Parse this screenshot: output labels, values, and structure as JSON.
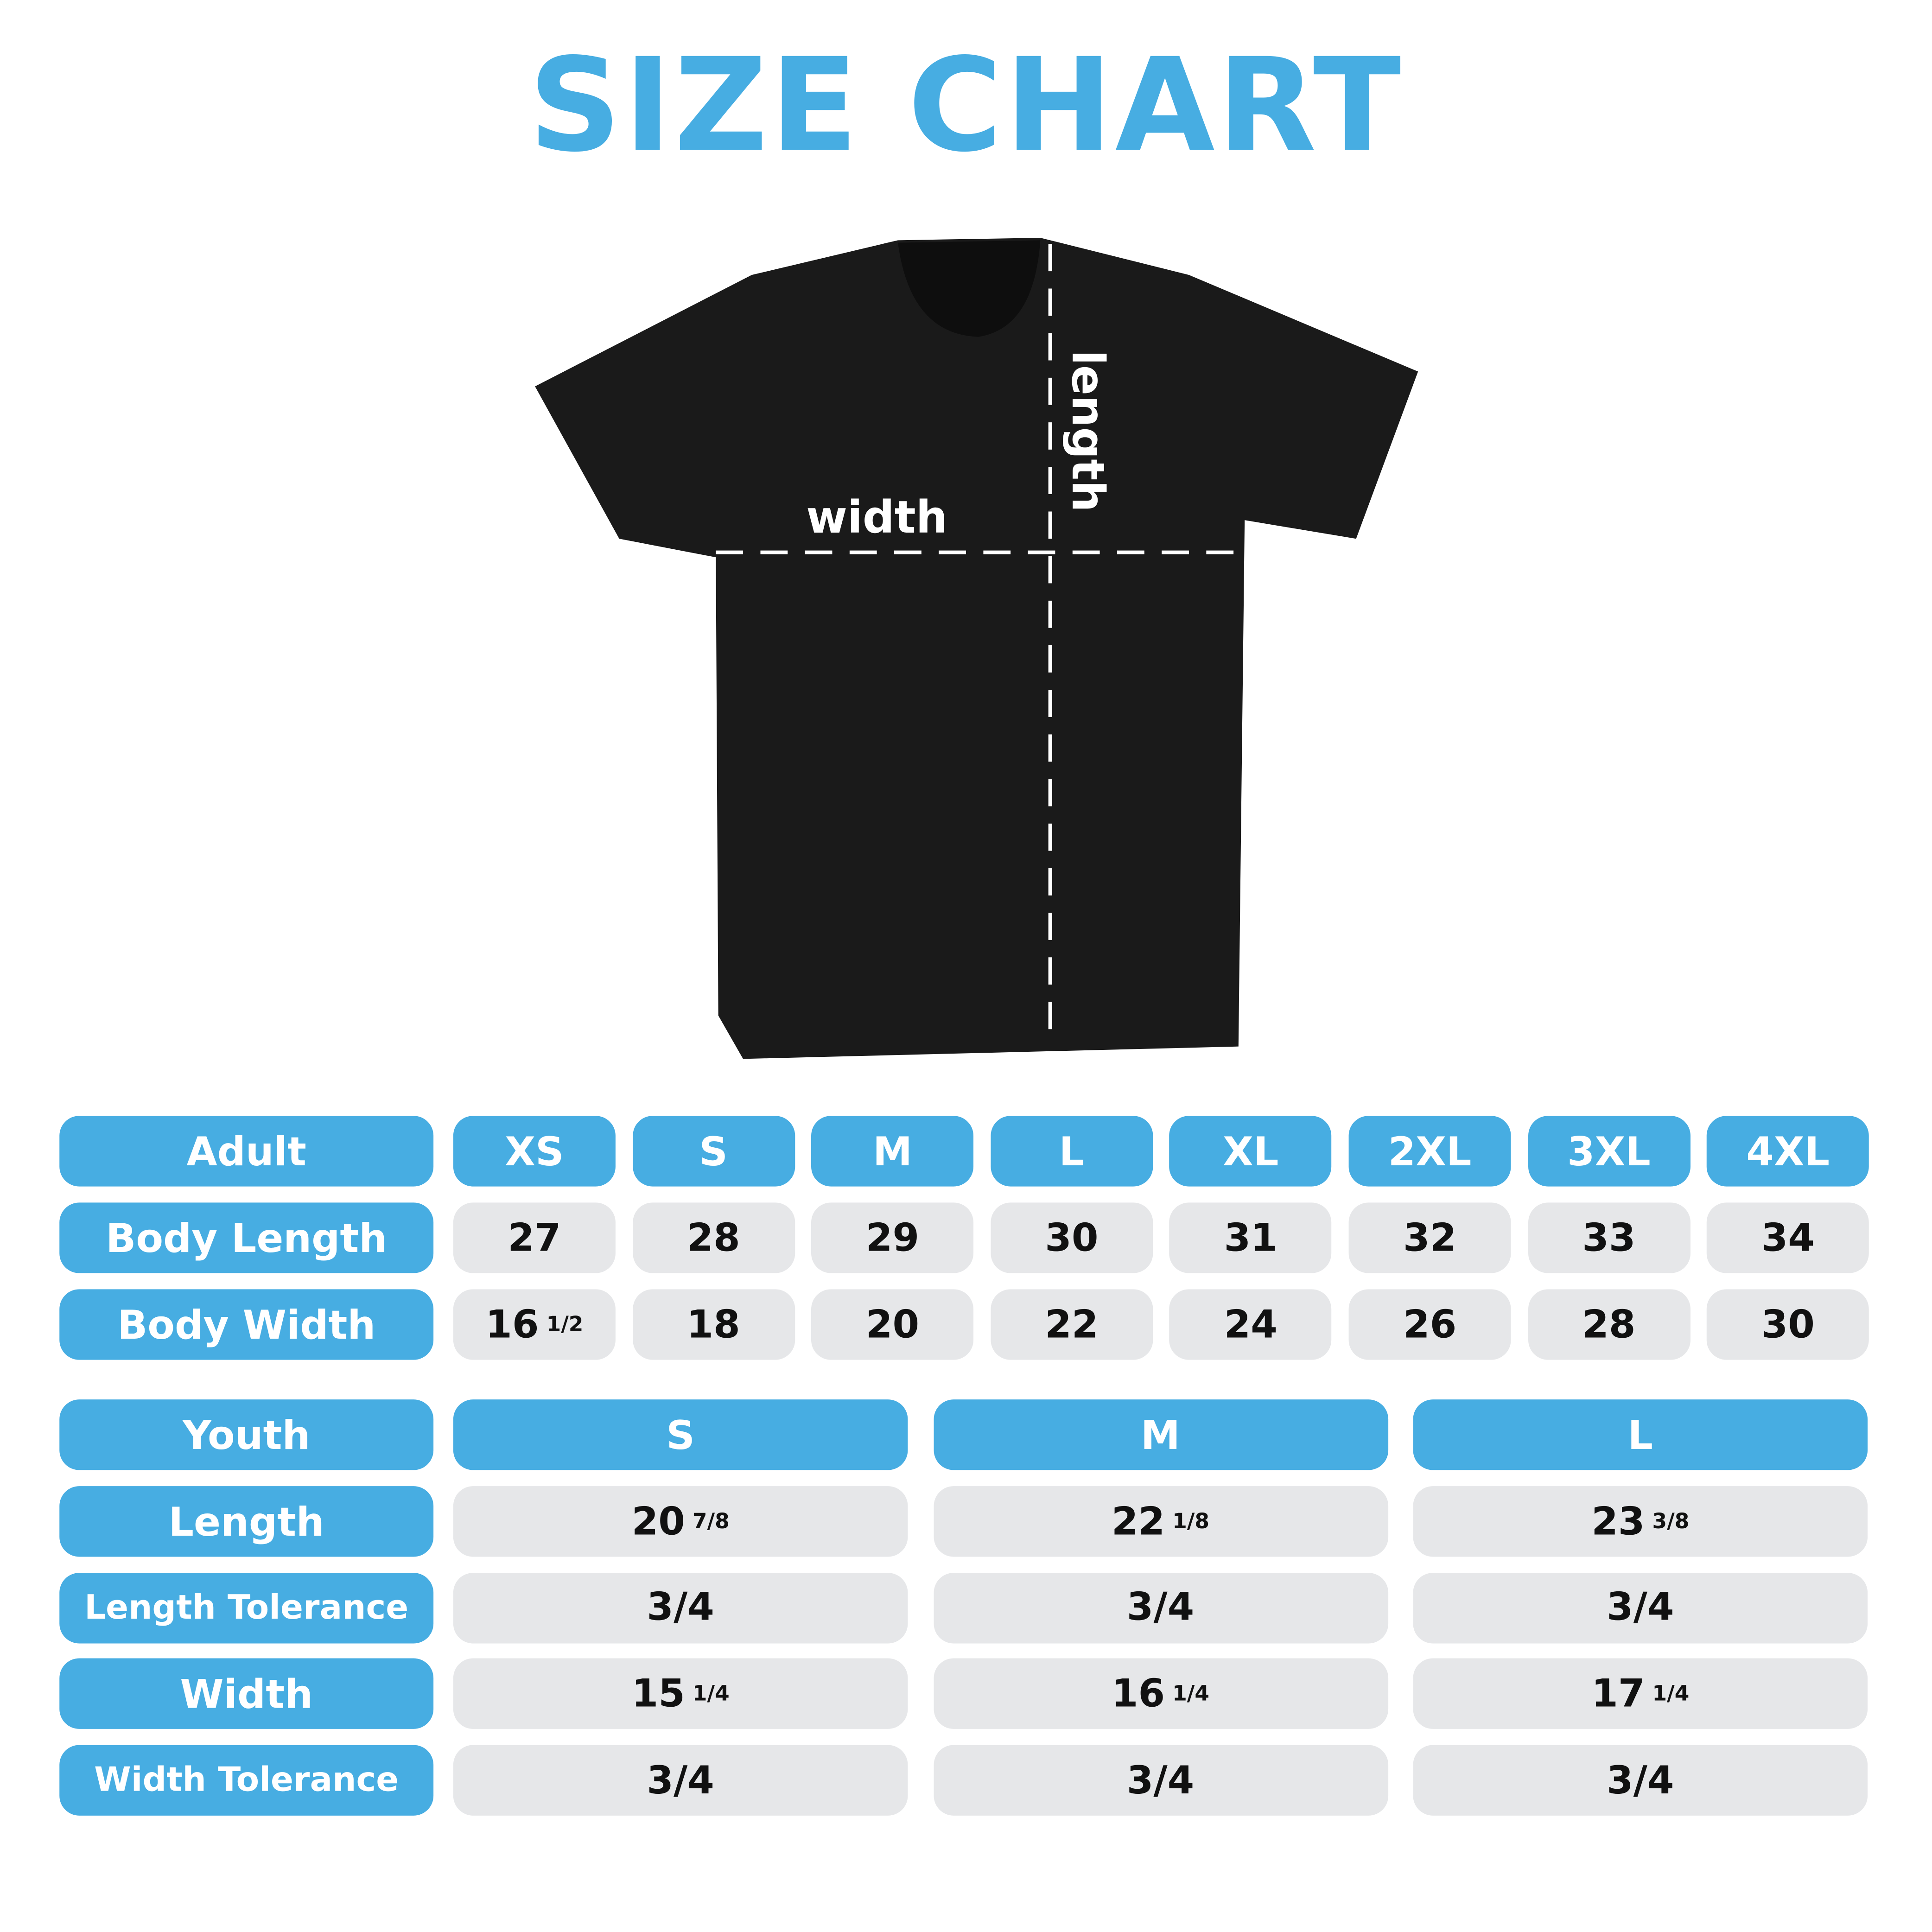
{
  "title": "SIZE CHART",
  "diagram": {
    "width_label": "width",
    "length_label": "length"
  },
  "colors": {
    "accent": "#47ADE2",
    "cell": "#E6E7E9",
    "shirt": "#1A1A1A"
  },
  "adult": {
    "header": "Adult",
    "sizes": [
      "XS",
      "S",
      "M",
      "L",
      "XL",
      "2XL",
      "3XL",
      "4XL"
    ],
    "rows": [
      {
        "label": "Body Length",
        "values": [
          {
            "w": "27"
          },
          {
            "w": "28"
          },
          {
            "w": "29"
          },
          {
            "w": "30"
          },
          {
            "w": "31"
          },
          {
            "w": "32"
          },
          {
            "w": "33"
          },
          {
            "w": "34"
          }
        ]
      },
      {
        "label": "Body Width",
        "values": [
          {
            "w": "16",
            "f": "1/2"
          },
          {
            "w": "18"
          },
          {
            "w": "20"
          },
          {
            "w": "22"
          },
          {
            "w": "24"
          },
          {
            "w": "26"
          },
          {
            "w": "28"
          },
          {
            "w": "30"
          }
        ]
      }
    ]
  },
  "youth": {
    "header": "Youth",
    "sizes": [
      "S",
      "M",
      "L"
    ],
    "rows": [
      {
        "label": "Length",
        "values": [
          {
            "w": "20",
            "f": "7/8"
          },
          {
            "w": "22",
            "f": "1/8"
          },
          {
            "w": "23",
            "f": "3/8"
          }
        ]
      },
      {
        "label": "Length Tolerance",
        "values": [
          {
            "w": "3/4"
          },
          {
            "w": "3/4"
          },
          {
            "w": "3/4"
          }
        ]
      },
      {
        "label": "Width",
        "values": [
          {
            "w": "15",
            "f": "1/4"
          },
          {
            "w": "16",
            "f": "1/4"
          },
          {
            "w": "17",
            "f": "1/4"
          }
        ]
      },
      {
        "label": "Width Tolerance",
        "values": [
          {
            "w": "3/4"
          },
          {
            "w": "3/4"
          },
          {
            "w": "3/4"
          }
        ]
      }
    ]
  }
}
